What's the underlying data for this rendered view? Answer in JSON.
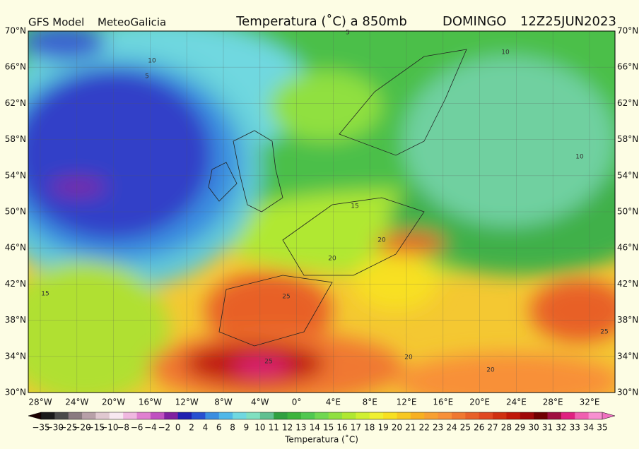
{
  "header": {
    "model": "GFS Model",
    "source": "MeteoGalicia",
    "title": "Temperatura (˚C) a 850mb",
    "day": "DOMINGO",
    "run": "12Z25JUN2023"
  },
  "lat_labels": [
    "70°N",
    "66°N",
    "62°N",
    "58°N",
    "54°N",
    "50°N",
    "46°N",
    "42°N",
    "38°N",
    "34°N",
    "30°N"
  ],
  "lon_labels": [
    "28°W",
    "24°W",
    "20°W",
    "16°W",
    "12°W",
    "8°W",
    "4°W",
    "0°",
    "4°E",
    "8°E",
    "12°E",
    "16°E",
    "20°E",
    "24°E",
    "28°E",
    "32°E"
  ],
  "contour_labels": [
    "10",
    "5",
    "15",
    "20",
    "20",
    "25",
    "25",
    "20",
    "15",
    "10",
    "10",
    "5",
    "25",
    "20"
  ],
  "colorbar": {
    "label": "Temperatura (˚C)",
    "ticks": [
      "−35",
      "−30",
      "−25",
      "−20",
      "−15",
      "−10",
      "−8",
      "−6",
      "−4",
      "−2",
      "0",
      "2",
      "4",
      "6",
      "8",
      "9",
      "10",
      "11",
      "12",
      "13",
      "14",
      "15",
      "16",
      "17",
      "18",
      "19",
      "20",
      "21",
      "22",
      "23",
      "24",
      "25",
      "26",
      "27",
      "28",
      "29",
      "30",
      "31",
      "32",
      "33",
      "34",
      "35"
    ],
    "under_color": "#1a0000",
    "over_color": "#f070c0",
    "colors": [
      "#1a1a1a",
      "#4a4a4a",
      "#8a7a80",
      "#b8a0a8",
      "#e0c8d0",
      "#f8e8f0",
      "#f0b8e0",
      "#e080d0",
      "#c050c0",
      "#8020a0",
      "#2020b0",
      "#2850d0",
      "#3a8ee0",
      "#50b8e8",
      "#70d8e0",
      "#80e0c0",
      "#60c090",
      "#30a040",
      "#3cb43c",
      "#50c850",
      "#70d850",
      "#90e040",
      "#b0e830",
      "#d0f030",
      "#f0f030",
      "#f8e020",
      "#f8c820",
      "#f8b020",
      "#f8a030",
      "#f89038",
      "#f07830",
      "#e86028",
      "#e04820",
      "#d03010",
      "#c01808",
      "#a00808",
      "#700000",
      "#a01040",
      "#e02080",
      "#f060b0",
      "#f890d0"
    ]
  }
}
